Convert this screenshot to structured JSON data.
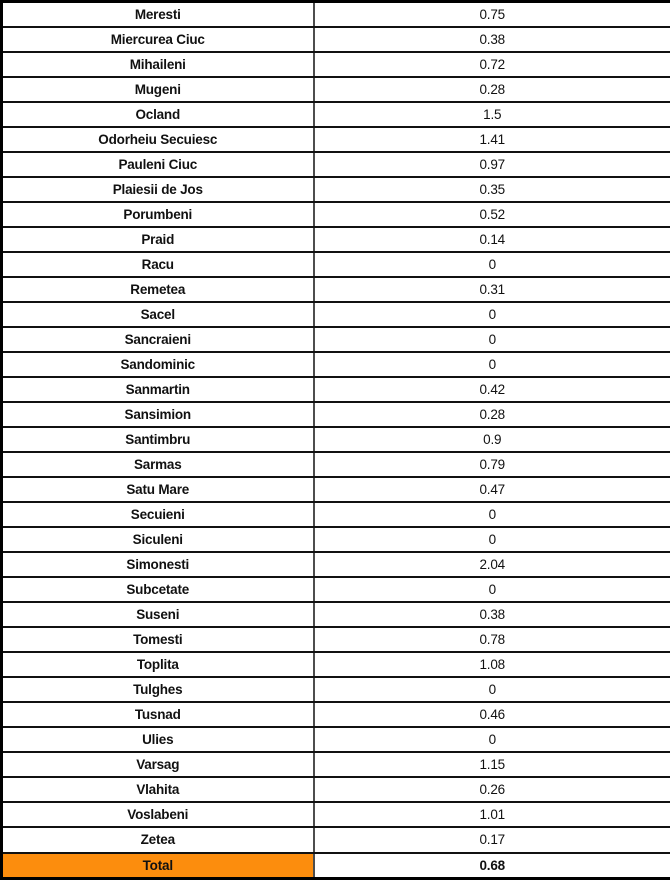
{
  "colors": {
    "total_row_bg": "#FC8D0D",
    "grid_line": "#111111",
    "column_divider": "#4d4d4d"
  },
  "chart_data": {
    "type": "table",
    "columns": [
      "locality",
      "value"
    ],
    "rows": [
      {
        "locality": "Meresti",
        "value": "0.75"
      },
      {
        "locality": "Miercurea Ciuc",
        "value": "0.38"
      },
      {
        "locality": "Mihaileni",
        "value": "0.72"
      },
      {
        "locality": "Mugeni",
        "value": "0.28"
      },
      {
        "locality": "Ocland",
        "value": "1.5"
      },
      {
        "locality": "Odorheiu Secuiesc",
        "value": "1.41"
      },
      {
        "locality": "Pauleni Ciuc",
        "value": "0.97"
      },
      {
        "locality": "Plaiesii de Jos",
        "value": "0.35"
      },
      {
        "locality": "Porumbeni",
        "value": "0.52"
      },
      {
        "locality": "Praid",
        "value": "0.14"
      },
      {
        "locality": "Racu",
        "value": "0"
      },
      {
        "locality": "Remetea",
        "value": "0.31"
      },
      {
        "locality": "Sacel",
        "value": "0"
      },
      {
        "locality": "Sancraieni",
        "value": "0"
      },
      {
        "locality": "Sandominic",
        "value": "0"
      },
      {
        "locality": "Sanmartin",
        "value": "0.42"
      },
      {
        "locality": "Sansimion",
        "value": "0.28"
      },
      {
        "locality": "Santimbru",
        "value": "0.9"
      },
      {
        "locality": "Sarmas",
        "value": "0.79"
      },
      {
        "locality": "Satu Mare",
        "value": "0.47"
      },
      {
        "locality": "Secuieni",
        "value": "0"
      },
      {
        "locality": "Siculeni",
        "value": "0"
      },
      {
        "locality": "Simonesti",
        "value": "2.04"
      },
      {
        "locality": "Subcetate",
        "value": "0"
      },
      {
        "locality": "Suseni",
        "value": "0.38"
      },
      {
        "locality": "Tomesti",
        "value": "0.78"
      },
      {
        "locality": "Toplita",
        "value": "1.08"
      },
      {
        "locality": "Tulghes",
        "value": "0"
      },
      {
        "locality": "Tusnad",
        "value": "0.46"
      },
      {
        "locality": "Ulies",
        "value": "0"
      },
      {
        "locality": "Varsag",
        "value": "1.15"
      },
      {
        "locality": "Vlahita",
        "value": "0.26"
      },
      {
        "locality": "Voslabeni",
        "value": "1.01"
      },
      {
        "locality": "Zetea",
        "value": "0.17"
      }
    ],
    "total": {
      "locality": "Total",
      "value": "0.68"
    }
  }
}
